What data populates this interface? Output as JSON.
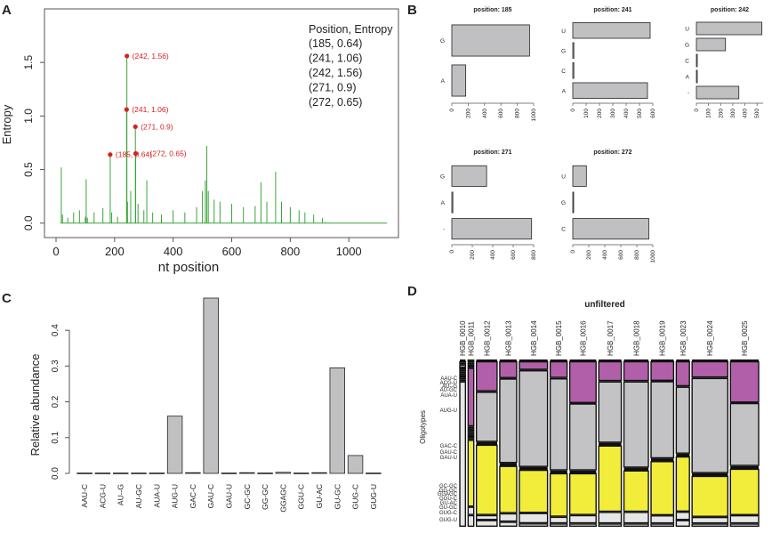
{
  "panels": {
    "A": {
      "letter": "A",
      "chart_data": {
        "type": "line",
        "xlabel": "nt position",
        "ylabel": "Entropy",
        "xlim": [
          0,
          1130
        ],
        "ylim": [
          -0.06,
          1.9
        ],
        "xticks": [
          "0",
          "200",
          "400",
          "600",
          "800",
          "1000"
        ],
        "yticks": [
          "0.0",
          "0.5",
          "1.0",
          "1.5"
        ],
        "line_color": "#3aa53a",
        "series_points": [
          [
            15,
            0
          ],
          [
            18,
            0.52
          ],
          [
            22,
            0.08
          ],
          [
            40,
            0.05
          ],
          [
            60,
            0.1
          ],
          [
            80,
            0.12
          ],
          [
            100,
            0.06
          ],
          [
            103,
            0.41
          ],
          [
            107,
            0.05
          ],
          [
            130,
            0.1
          ],
          [
            160,
            0.14
          ],
          [
            185,
            0.64
          ],
          [
            190,
            0.1
          ],
          [
            210,
            0.06
          ],
          [
            241,
            1.06
          ],
          [
            242,
            1.56
          ],
          [
            244,
            0.2
          ],
          [
            255,
            0.3
          ],
          [
            271,
            0.9
          ],
          [
            272,
            0.65
          ],
          [
            280,
            0.18
          ],
          [
            300,
            0.12
          ],
          [
            310,
            0.4
          ],
          [
            330,
            0.1
          ],
          [
            360,
            0.08
          ],
          [
            400,
            0.12
          ],
          [
            440,
            0.1
          ],
          [
            480,
            0.15
          ],
          [
            500,
            0.3
          ],
          [
            510,
            0.4
          ],
          [
            515,
            0.72
          ],
          [
            520,
            0.3
          ],
          [
            540,
            0.22
          ],
          [
            560,
            0.2
          ],
          [
            600,
            0.18
          ],
          [
            640,
            0.15
          ],
          [
            680,
            0.16
          ],
          [
            700,
            0.38
          ],
          [
            720,
            0.2
          ],
          [
            750,
            0.48
          ],
          [
            770,
            0.2
          ],
          [
            800,
            0.15
          ],
          [
            830,
            0.12
          ],
          [
            850,
            0.1
          ],
          [
            880,
            0.08
          ],
          [
            910,
            0.05
          ],
          [
            920,
            0.01
          ]
        ],
        "highlighted": [
          {
            "x": 185,
            "y": 0.64,
            "label": "(185, 0.64)"
          },
          {
            "x": 241,
            "y": 1.06,
            "label": "(241, 1.06)"
          },
          {
            "x": 242,
            "y": 1.56,
            "label": "(242, 1.56)"
          },
          {
            "x": 271,
            "y": 0.9,
            "label": "(271, 0.9)"
          },
          {
            "x": 272,
            "y": 0.65,
            "label": "(272, 0.65)"
          }
        ],
        "highlight_color": "#d62020",
        "legend": {
          "title": "Position, Entropy",
          "entries": [
            "(185, 0.64)",
            "(241, 1.06)",
            "(242, 1.56)",
            "(271, 0.9)",
            "(272, 0.65)"
          ]
        }
      }
    },
    "B": {
      "letter": "B",
      "chart_data": [
        {
          "type": "bar",
          "orientation": "horizontal",
          "title": "position: 185",
          "categories": [
            "G",
            "A"
          ],
          "values": [
            950,
            170
          ],
          "xlim": [
            0,
            1000
          ],
          "xticks": [
            "0",
            "200",
            "400",
            "600",
            "800",
            "1000"
          ]
        },
        {
          "type": "bar",
          "orientation": "horizontal",
          "title": "position: 241",
          "categories": [
            "U",
            "G",
            "C",
            "A"
          ],
          "values": [
            580,
            8,
            8,
            560
          ],
          "xlim": [
            0,
            600
          ],
          "xticks": [
            "0",
            "100",
            "200",
            "300",
            "400",
            "500",
            "600"
          ]
        },
        {
          "type": "bar",
          "orientation": "horizontal",
          "title": "position: 242",
          "categories": [
            "U",
            "G",
            "C",
            "A",
            "-"
          ],
          "values": [
            540,
            240,
            5,
            5,
            350
          ],
          "xlim": [
            0,
            550
          ],
          "xticks": [
            "0",
            "100",
            "200",
            "300",
            "400",
            "500"
          ]
        },
        {
          "type": "bar",
          "orientation": "horizontal",
          "title": "position: 271",
          "categories": [
            "G",
            "A",
            "-"
          ],
          "values": [
            340,
            10,
            780
          ],
          "xlim": [
            0,
            800
          ],
          "xticks": [
            "0",
            "200",
            "400",
            "600",
            "800"
          ]
        },
        {
          "type": "bar",
          "orientation": "horizontal",
          "title": "position: 272",
          "categories": [
            "U",
            "G",
            "C"
          ],
          "values": [
            170,
            5,
            950
          ],
          "xlim": [
            0,
            1000
          ],
          "xticks": [
            "0",
            "200",
            "400",
            "600",
            "800",
            "1000"
          ]
        }
      ]
    },
    "C": {
      "letter": "C",
      "chart_data": {
        "type": "bar",
        "ylabel": "Relative abundance",
        "ylim": [
          0,
          0.49
        ],
        "yticks": [
          "0.0",
          "0.1",
          "0.2",
          "0.3",
          "0.4"
        ],
        "categories": [
          "AAU-C",
          "ACG-U",
          "AU--G",
          "AU-GC",
          "AUA-U",
          "AUG-U",
          "GAC-C",
          "GAU-C",
          "GAU-U",
          "GC-GC",
          "GG-GC",
          "GGAGC",
          "GGU-C",
          "GU-AC",
          "GU-GC",
          "GUG-C",
          "GUG-U"
        ],
        "values": [
          0.001,
          0.001,
          0.001,
          0.001,
          0.001,
          0.16,
          0.002,
          0.49,
          0.001,
          0.002,
          0.001,
          0.003,
          0.001,
          0.002,
          0.295,
          0.05,
          0.001
        ]
      }
    },
    "D": {
      "letter": "D",
      "chart_data": {
        "type": "mosaic",
        "title": "unfiltered",
        "ylabel": "Oligotypes",
        "samples": [
          "HGB_0010",
          "HGB_0011",
          "HGB_0012",
          "HGB_0013",
          "HGB_0014",
          "HGB_0015",
          "HGB_0016",
          "HGB_0017",
          "HGB_0018",
          "HGB_0019",
          "HGB_0023",
          "HGB_0024",
          "HGB_0025"
        ],
        "sample_weights": [
          0.3,
          0.3,
          1.1,
          0.9,
          1.5,
          0.9,
          1.4,
          1.2,
          1.3,
          1.2,
          0.7,
          1.9,
          1.5
        ],
        "oligotype_labels": [
          "AAU-C",
          "ACG-U",
          "AU--G",
          "AU-GC",
          "AUA-U",
          "AUG-U",
          "GAC-C",
          "GAU-C",
          "GAU-U",
          "GC-GC",
          "GG-GC",
          "GGAGC",
          "GGU-C",
          "GU-AC",
          "GU-GC",
          "GUG-C",
          "GUG-U"
        ],
        "y_label_texts": [
          "AAU-C",
          "ACG-U",
          "AU--G",
          "AU-GC",
          "AUA-U",
          "AUG-U",
          "GAC-C",
          "GAU-C",
          "GAU-U",
          "GC-GC",
          "GG-GC",
          "GGAGC",
          "GGU-C",
          "GU-AC",
          "GU-GC",
          "GUG-C",
          "GUG-U"
        ],
        "proportions": [
          [
            0.002,
            0.002,
            0.002,
            0.002,
            0.002,
            0.01,
            0.01,
            0.02,
            0.01,
            0.01,
            0.01,
            0.01,
            0.01,
            0.01,
            0.01,
            0.01,
            0.86
          ],
          [
            0.01,
            0.01,
            0.01,
            0.01,
            0.01,
            0.35,
            0.01,
            0.01,
            0.01,
            0.01,
            0.01,
            0.01,
            0.01,
            0.01,
            0.4,
            0.05,
            0.07
          ],
          [
            0.002,
            0.002,
            0.002,
            0.002,
            0.002,
            0.18,
            0.002,
            0.3,
            0.002,
            0.002,
            0.002,
            0.004,
            0.002,
            0.004,
            0.42,
            0.03,
            0.04
          ],
          [
            0.002,
            0.002,
            0.002,
            0.002,
            0.002,
            0.1,
            0.002,
            0.5,
            0.002,
            0.002,
            0.002,
            0.004,
            0.002,
            0.004,
            0.28,
            0.05,
            0.03
          ],
          [
            0.002,
            0.002,
            0.002,
            0.002,
            0.002,
            0.05,
            0.002,
            0.56,
            0.002,
            0.002,
            0.002,
            0.004,
            0.002,
            0.004,
            0.25,
            0.06,
            0.02
          ],
          [
            0.002,
            0.002,
            0.002,
            0.002,
            0.002,
            0.1,
            0.002,
            0.55,
            0.002,
            0.002,
            0.002,
            0.004,
            0.002,
            0.004,
            0.26,
            0.04,
            0.02
          ],
          [
            0.002,
            0.002,
            0.002,
            0.002,
            0.002,
            0.25,
            0.002,
            0.4,
            0.002,
            0.002,
            0.002,
            0.004,
            0.002,
            0.004,
            0.25,
            0.05,
            0.02
          ],
          [
            0.002,
            0.002,
            0.002,
            0.002,
            0.002,
            0.12,
            0.002,
            0.37,
            0.002,
            0.002,
            0.002,
            0.004,
            0.002,
            0.004,
            0.4,
            0.07,
            0.02
          ],
          [
            0.002,
            0.002,
            0.002,
            0.002,
            0.002,
            0.12,
            0.002,
            0.52,
            0.002,
            0.002,
            0.002,
            0.004,
            0.002,
            0.004,
            0.25,
            0.07,
            0.02
          ],
          [
            0.002,
            0.002,
            0.002,
            0.002,
            0.002,
            0.12,
            0.002,
            0.47,
            0.002,
            0.002,
            0.002,
            0.004,
            0.002,
            0.004,
            0.33,
            0.05,
            0.02
          ],
          [
            0.002,
            0.002,
            0.002,
            0.002,
            0.002,
            0.15,
            0.002,
            0.4,
            0.002,
            0.002,
            0.002,
            0.004,
            0.002,
            0.004,
            0.33,
            0.05,
            0.04
          ],
          [
            0.002,
            0.002,
            0.002,
            0.002,
            0.002,
            0.1,
            0.002,
            0.58,
            0.002,
            0.002,
            0.002,
            0.004,
            0.002,
            0.004,
            0.25,
            0.04,
            0.02
          ],
          [
            0.002,
            0.002,
            0.002,
            0.002,
            0.002,
            0.25,
            0.002,
            0.38,
            0.002,
            0.002,
            0.002,
            0.004,
            0.002,
            0.004,
            0.28,
            0.05,
            0.02
          ]
        ],
        "colors": {
          "AUG-U": "#b25fa9",
          "GAU-C": "#c3c3c5",
          "GU-GC": "#f2ec3a",
          "other": "#e6e6e6"
        }
      }
    }
  },
  "style": {
    "bar_fill": "#c0c0c2",
    "axis": "#555555",
    "text": "#222222"
  }
}
